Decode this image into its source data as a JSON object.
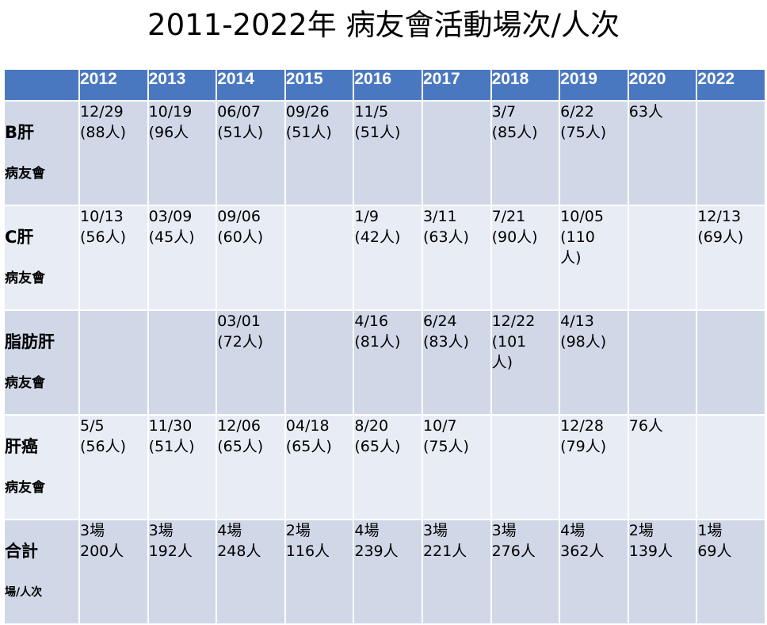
{
  "title": "2011-2022年 病友會活動場次/人次",
  "table": {
    "corner": "",
    "years": [
      "2012",
      "2013",
      "2014",
      "2015",
      "2016",
      "2017",
      "2018",
      "2019",
      "2020",
      "2022"
    ],
    "rows": [
      {
        "label_main": "B肝",
        "label_sub": "病友會",
        "cells": [
          "12/29\n(88人)",
          "10/19\n(96人",
          "06/07\n(51人)",
          "09/26\n(51人)",
          "11/5\n(51人)",
          "",
          "3/7\n(85人)",
          "6/22\n(75人)",
          "63人",
          ""
        ]
      },
      {
        "label_main": "C肝",
        "label_sub": "病友會",
        "cells": [
          "10/13\n(56人)",
          "03/09\n(45人)",
          "09/06\n(60人)",
          "",
          "1/9\n(42人)",
          "3/11\n(63人)",
          "7/21\n(90人)",
          "10/05\n(110\n人)",
          "",
          "12/13\n(69人)"
        ]
      },
      {
        "label_main": "脂肪肝",
        "label_sub": "病友會",
        "cells": [
          "",
          "",
          "03/01\n(72人)",
          "",
          "4/16\n(81人)",
          "6/24\n(83人)",
          "12/22\n(101\n人)",
          "4/13\n(98人)",
          "",
          ""
        ]
      },
      {
        "label_main": "肝癌",
        "label_sub": "病友會",
        "cells": [
          "5/5\n(56人)",
          "11/30\n(51人)",
          "12/06\n(65人)",
          "04/18\n(65人)",
          "8/20\n(65人)",
          "10/7\n(75人)",
          "",
          "12/28\n(79人)",
          "76人",
          ""
        ]
      },
      {
        "label_main": "合計",
        "label_sub": "場/人次",
        "cells": [
          "3場\n200人",
          "3場\n192人",
          "4場\n248人",
          "2場\n116人",
          "4場\n239人",
          "3場\n221人",
          "3場\n276人",
          "4場\n362人",
          "2場\n139人",
          "1場\n69人"
        ]
      }
    ]
  },
  "colors": {
    "header_bg": "#4a78c0",
    "row_odd_bg": "#d0d8e8",
    "row_even_bg": "#e8ecf4",
    "header_text": "#ffffff"
  }
}
